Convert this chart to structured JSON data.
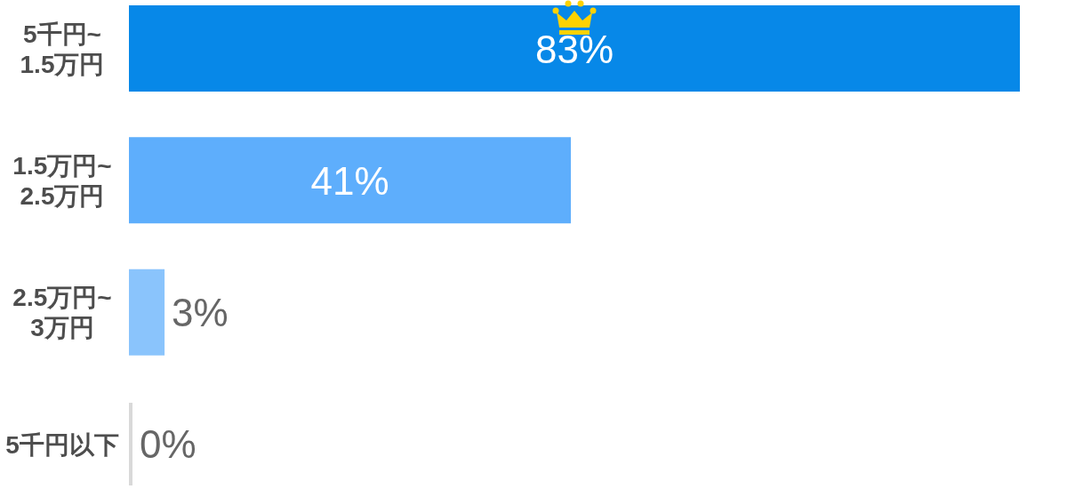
{
  "chart_data": {
    "type": "bar",
    "orientation": "horizontal",
    "categories": [
      "5千円~\n1.5万円",
      "1.5万円~\n2.5万円",
      "2.5万円~\n3万円",
      "5千円以下"
    ],
    "values": [
      83,
      41,
      3,
      0
    ],
    "colors": [
      "#0788e8",
      "#5eaefc",
      "#8ac4fc",
      "#d9d9d9"
    ],
    "value_labels": [
      "83%",
      "41%",
      "3%",
      "0%"
    ]
  }
}
